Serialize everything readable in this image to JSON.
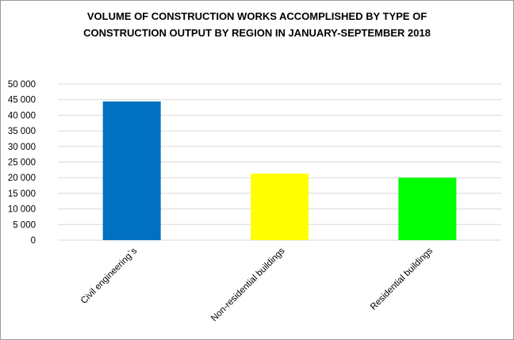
{
  "chart_data": {
    "type": "bar",
    "title": "VOLUME OF CONSTRUCTION WORKS ACCOMPLISHED BY TYPE OF CONSTRUCTION OUTPUT BY REGION IN JANUARY-SEPTEMBER 2018",
    "title_lines": [
      "VOLUME OF CONSTRUCTION WORKS ACCOMPLISHED BY TYPE OF",
      "CONSTRUCTION OUTPUT BY REGION IN JANUARY-SEPTEMBER 2018"
    ],
    "categories": [
      "Civil engineering`s",
      "Non-residential buildings",
      "Residential buildings"
    ],
    "values": [
      44400,
      21300,
      20000
    ],
    "bar_colors": [
      "#0070c0",
      "#ffff00",
      "#00ff00"
    ],
    "ylim": [
      0,
      50000
    ],
    "yticks": [
      0,
      5000,
      10000,
      15000,
      20000,
      25000,
      30000,
      35000,
      40000,
      45000,
      50000
    ],
    "ytick_labels": [
      "0",
      "5 000",
      "10 000",
      "15 000",
      "20 000",
      "25 000",
      "30 000",
      "35 000",
      "40 000",
      "45 000",
      "50 000"
    ],
    "xlabel": "",
    "ylabel": "",
    "grid": true,
    "gridline_color": "#d9d9d9",
    "legend": "none"
  }
}
